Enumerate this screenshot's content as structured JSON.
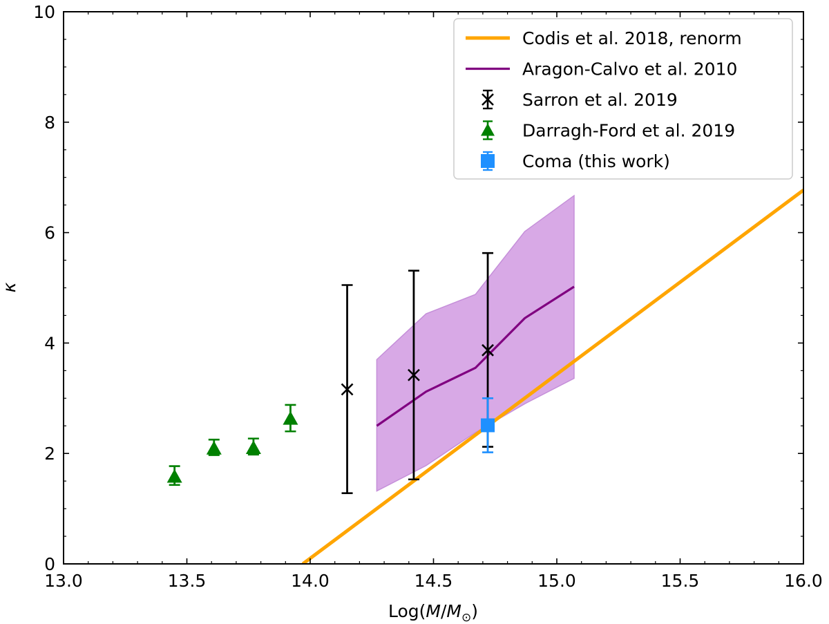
{
  "chart_data": {
    "type": "scatter",
    "xlabel_prefix": "Log(",
    "xlabel_var": "M",
    "xlabel_sep": "/",
    "xlabel_den": "M",
    "xlabel_sub": "⊙",
    "xlabel_suffix": ")",
    "ylabel": "κ",
    "xlim": [
      13.0,
      16.0
    ],
    "ylim": [
      0,
      10
    ],
    "xticks": [
      13.0,
      13.5,
      14.0,
      14.5,
      15.0,
      15.5,
      16.0
    ],
    "xtick_labels": [
      "13.0",
      "13.5",
      "14.0",
      "14.5",
      "15.0",
      "15.5",
      "16.0"
    ],
    "yticks": [
      0,
      2,
      4,
      6,
      8,
      10
    ],
    "ytick_labels": [
      "0",
      "2",
      "4",
      "6",
      "8",
      "10"
    ],
    "legend_position": "top-right",
    "series": [
      {
        "name": "Codis et al. 2018, renorm",
        "kind": "line",
        "color": "#FFA500",
        "x": [
          13.97,
          16.0
        ],
        "y": [
          0.0,
          6.77
        ]
      },
      {
        "name": "Aragon-Calvo et al. 2010",
        "kind": "line-band",
        "color": "#800080",
        "band_color": "#D8A9E6",
        "x": [
          14.27,
          14.47,
          14.67,
          14.87,
          15.07
        ],
        "y": [
          2.5,
          3.12,
          3.55,
          4.45,
          5.02
        ],
        "lower": [
          1.32,
          1.78,
          2.38,
          2.9,
          3.36
        ],
        "upper": [
          3.7,
          4.53,
          4.88,
          6.02,
          6.67
        ]
      },
      {
        "name": "Sarron et al. 2019",
        "kind": "errorbar",
        "marker": "x",
        "color": "#000000",
        "x": [
          14.15,
          14.42,
          14.72
        ],
        "y": [
          3.16,
          3.42,
          3.87
        ],
        "yerr_low": [
          1.28,
          1.53,
          2.12
        ],
        "yerr_high": [
          5.05,
          5.31,
          5.63
        ]
      },
      {
        "name": "Darragh-Ford et al. 2019",
        "kind": "errorbar",
        "marker": "triangle",
        "color": "#008000",
        "x": [
          13.45,
          13.61,
          13.77,
          13.92
        ],
        "y": [
          1.58,
          2.09,
          2.1,
          2.63
        ],
        "yerr_low": [
          1.43,
          1.97,
          1.98,
          2.4
        ],
        "yerr_high": [
          1.77,
          2.25,
          2.27,
          2.88
        ]
      },
      {
        "name": "Coma (this work)",
        "kind": "errorbar",
        "marker": "square",
        "color": "#1E90FF",
        "x": [
          14.72
        ],
        "y": [
          2.51
        ],
        "yerr_low": [
          2.02
        ],
        "yerr_high": [
          3.0
        ]
      }
    ]
  }
}
